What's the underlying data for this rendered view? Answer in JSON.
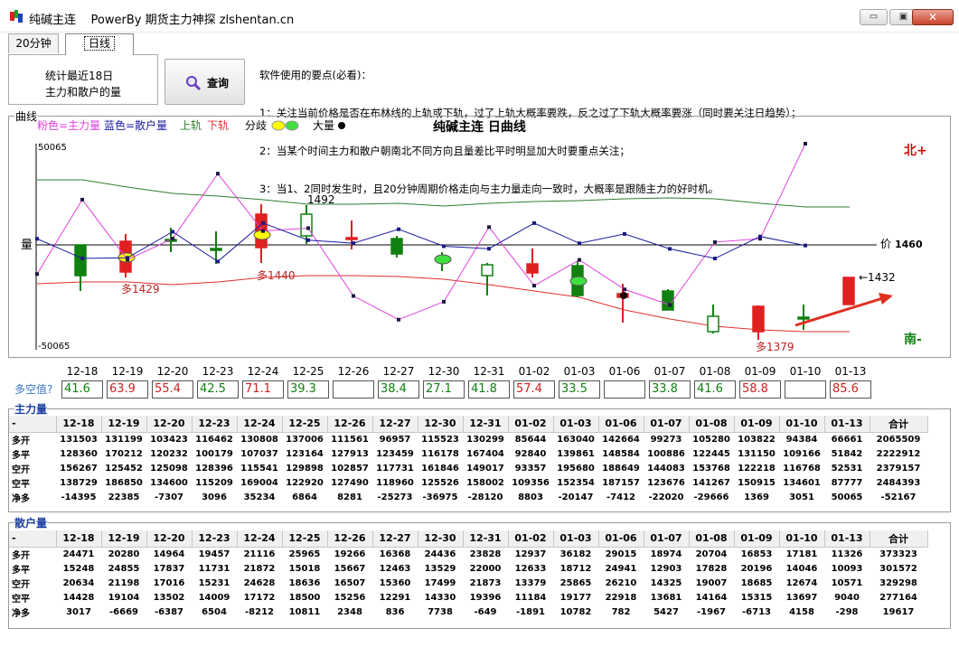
{
  "window": {
    "title": "纯碱主连    PowerBy 期货主力神探 zlshentan.cn",
    "minimize": "▭",
    "maximize": "▣",
    "close": "✕"
  },
  "tabs": [
    {
      "label": "20分钟"
    },
    {
      "label": "日线"
    }
  ],
  "stats": {
    "line1": "统计最近18日",
    "line2": "主力和散户的量"
  },
  "query_button": {
    "label": "查询"
  },
  "notes": [
    "软件使用的要点(必看)：",
    "1：关注当前价格是否在布林线的上轨或下轨，过了上轨大概率要跌，反之过了下轨大概率要涨（同时要关注日趋势）；",
    "2：当某个时间主力和散户朝南北不同方向且量差比平时明显加大时要重点关注；",
    "3：当1、2同时发生时，且20分钟周期价格走向与主力量走向一致时，大概率是跟随主力的好时机。"
  ],
  "chart": {
    "group_label": "曲线",
    "legend": {
      "pink": "粉色=主力量",
      "blue": "蓝色=散户量",
      "upper": "上轨",
      "lower": "下轨",
      "divergence": "分歧",
      "big": "大量"
    },
    "title": "纯碱主连 日曲线",
    "y_max_label": "50065",
    "y_min_label": "-50065",
    "y_axis_label": "量",
    "north_label": "北+",
    "south_label": "南-",
    "price_label": "价",
    "price_value": "1460",
    "annotations": {
      "high": "1492",
      "low_left": "多1429",
      "mid": "多1440",
      "low_right": "多1379",
      "last": "←1432"
    },
    "colors": {
      "pink": "#e040e0",
      "blue": "#1a1aa0",
      "upper": "#2e7d2e",
      "lower": "#e03030",
      "up": "#e02020",
      "down": "#108010"
    }
  },
  "chart_data": {
    "type": "line",
    "categories": [
      "12-18",
      "12-19",
      "12-20",
      "12-23",
      "12-24",
      "12-25",
      "12-26",
      "12-27",
      "12-30",
      "12-31",
      "01-02",
      "01-03",
      "01-06",
      "01-07",
      "01-08",
      "01-09",
      "01-10",
      "01-13"
    ],
    "y_range": [
      -50065,
      50065
    ],
    "series": [
      {
        "name": "粉色=主力量",
        "values": [
          -14395,
          22385,
          -7307,
          3096,
          35234,
          6864,
          8281,
          -25273,
          -36975,
          -28120,
          8803,
          -20147,
          -7412,
          -22020,
          -29666,
          1369,
          3051,
          50065
        ]
      },
      {
        "name": "蓝色=散户量",
        "values": [
          3017,
          -6669,
          -6387,
          6504,
          -8212,
          10811,
          2348,
          836,
          7738,
          -649,
          -1891,
          10782,
          782,
          5427,
          -1967,
          -6713,
          4158,
          -298
        ]
      }
    ],
    "candles": {
      "price_range": [
        1360,
        1505
      ],
      "price_label_last": 1460,
      "high_label": 1492,
      "lows": [
        1429,
        1440,
        1379
      ],
      "last_close": 1432
    }
  },
  "long_short": {
    "label": "多空值?",
    "dates": [
      "12-18",
      "12-19",
      "12-20",
      "12-23",
      "12-24",
      "12-25",
      "12-26",
      "12-27",
      "12-30",
      "12-31",
      "01-02",
      "01-03",
      "01-06",
      "01-07",
      "01-08",
      "01-09",
      "01-10",
      "01-13"
    ],
    "values": [
      "41.6",
      "63.9",
      "55.4",
      "42.5",
      "71.1",
      "39.3",
      "",
      "38.4",
      "27.1",
      "41.8",
      "57.4",
      "33.5",
      "",
      "33.8",
      "41.6",
      "58.8",
      "",
      "85.6"
    ],
    "colors": [
      "#108010",
      "#d02020",
      "#d02020",
      "#108010",
      "#d02020",
      "#108010",
      "#000",
      "#108010",
      "#108010",
      "#108010",
      "#d02020",
      "#108010",
      "#000",
      "#108010",
      "#108010",
      "#d02020",
      "#000",
      "#d02020"
    ]
  },
  "main_table": {
    "title": "主力量",
    "header": [
      "-",
      "12-18",
      "12-19",
      "12-20",
      "12-23",
      "12-24",
      "12-25",
      "12-26",
      "12-27",
      "12-30",
      "12-31",
      "01-02",
      "01-03",
      "01-06",
      "01-07",
      "01-08",
      "01-09",
      "01-10",
      "01-13",
      "合计"
    ],
    "rows": [
      [
        "多开",
        "131503",
        "131199",
        "103423",
        "116462",
        "130808",
        "137006",
        "111561",
        "96957",
        "115523",
        "130299",
        "85644",
        "163040",
        "142664",
        "99273",
        "105280",
        "103822",
        "94384",
        "66661",
        "2065509"
      ],
      [
        "多平",
        "128360",
        "170212",
        "120232",
        "100179",
        "107037",
        "123164",
        "127913",
        "123459",
        "116178",
        "167404",
        "92840",
        "139861",
        "148584",
        "100886",
        "122445",
        "131150",
        "109166",
        "51842",
        "2222912"
      ],
      [
        "空开",
        "156267",
        "125452",
        "125098",
        "128396",
        "115541",
        "129898",
        "102857",
        "117731",
        "161846",
        "149017",
        "93357",
        "195680",
        "188649",
        "144083",
        "153768",
        "122218",
        "116768",
        "52531",
        "2379157"
      ],
      [
        "空平",
        "138729",
        "186850",
        "134600",
        "115209",
        "169004",
        "122920",
        "127490",
        "118960",
        "125526",
        "158002",
        "109356",
        "152354",
        "187157",
        "123676",
        "141267",
        "150915",
        "134601",
        "87777",
        "2484393"
      ],
      [
        "净多",
        "-14395",
        "22385",
        "-7307",
        "3096",
        "35234",
        "6864",
        "8281",
        "-25273",
        "-36975",
        "-28120",
        "8803",
        "-20147",
        "-7412",
        "-22020",
        "-29666",
        "1369",
        "3051",
        "50065",
        "-52167"
      ]
    ]
  },
  "retail_table": {
    "title": "散户量",
    "header": [
      "-",
      "12-18",
      "12-19",
      "12-20",
      "12-23",
      "12-24",
      "12-25",
      "12-26",
      "12-27",
      "12-30",
      "12-31",
      "01-02",
      "01-03",
      "01-06",
      "01-07",
      "01-08",
      "01-09",
      "01-10",
      "01-13",
      "合计"
    ],
    "rows": [
      [
        "多开",
        "24471",
        "20280",
        "14964",
        "19457",
        "21116",
        "25965",
        "19266",
        "16368",
        "24436",
        "23828",
        "12937",
        "36182",
        "29015",
        "18974",
        "20704",
        "16853",
        "17181",
        "11326",
        "373323"
      ],
      [
        "多平",
        "15248",
        "24855",
        "17837",
        "11731",
        "21872",
        "15018",
        "15667",
        "12463",
        "13529",
        "22000",
        "12633",
        "18712",
        "24941",
        "12903",
        "17828",
        "20196",
        "14046",
        "10093",
        "301572"
      ],
      [
        "空开",
        "20634",
        "21198",
        "17016",
        "15231",
        "24628",
        "18636",
        "16507",
        "15360",
        "17499",
        "21873",
        "13379",
        "25865",
        "26210",
        "14325",
        "19007",
        "18685",
        "12674",
        "10571",
        "329298"
      ],
      [
        "空平",
        "14428",
        "19104",
        "13502",
        "14009",
        "17172",
        "18500",
        "15256",
        "12291",
        "14330",
        "19396",
        "11184",
        "19177",
        "22918",
        "13681",
        "14164",
        "15315",
        "13697",
        "9040",
        "277164"
      ],
      [
        "净多",
        "3017",
        "-6669",
        "-6387",
        "6504",
        "-8212",
        "10811",
        "2348",
        "836",
        "7738",
        "-649",
        "-1891",
        "10782",
        "782",
        "5427",
        "-1967",
        "-6713",
        "4158",
        "-298",
        "19617"
      ]
    ]
  }
}
